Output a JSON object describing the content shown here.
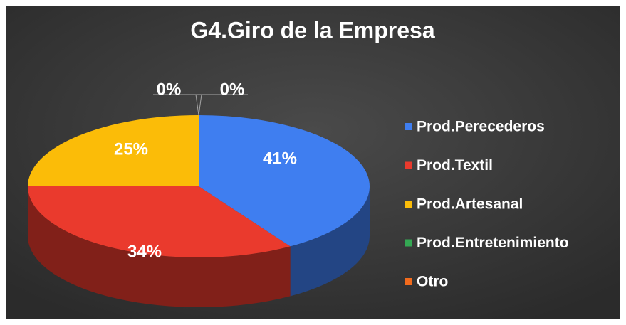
{
  "chart_data": {
    "type": "pie",
    "title": "G4.Giro de la Empresa",
    "categories": [
      "Prod.Perecederos",
      "Prod.Textil",
      "Prod.Artesanal",
      "Prod.Entretenimiento",
      "Otro"
    ],
    "values": [
      41,
      34,
      25,
      0,
      0
    ],
    "value_labels": [
      "41%",
      "34%",
      "25%",
      "0%",
      "0%"
    ],
    "colors": [
      "#3f7ef0",
      "#ea3a2d",
      "#fbbc08",
      "#34a853",
      "#f26b1d"
    ],
    "legend": "right"
  }
}
